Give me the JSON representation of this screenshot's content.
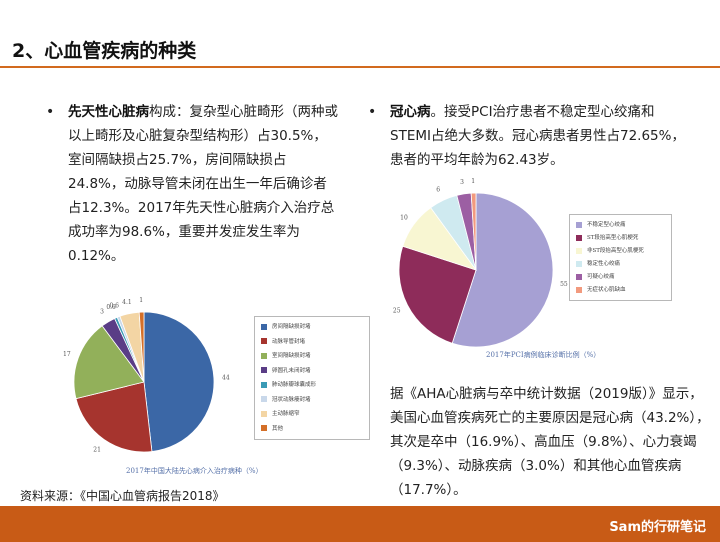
{
  "page": {
    "title": "2、心血管疾病的种类",
    "source": "资料来源：《中国心血管病报告2018》",
    "brand": "Sam的行研笔记",
    "accent_color": "#d26a1e",
    "footer_color": "#c85b16"
  },
  "bullets": {
    "b1": {
      "marker": "•",
      "bold": "先天性心脏病",
      "text": "构成：复杂型心脏畸形（两种或以上畸形及心脏复杂型结构形）占30.5%，室间隔缺损占25.7%，房间隔缺损占24.8%，动脉导管未闭在出生一年后确诊者占12.3%。2017年先天性心脏病介入治疗总成功率为98.6%，重要并发症发生率为0.12%。"
    },
    "b2": {
      "marker": "•",
      "bold": "冠心病",
      "text": "。接受PCI治疗患者不稳定型心绞痛和STEMI占绝大多数。冠心病患者男性占72.65%，患者的平均年龄为62.43岁。"
    },
    "b3": {
      "marker": "•",
      "text": "据《AHA心脏病与卒中统计数据（2019版）》显示，美国心血管疾病死亡的主要原因是冠心病（43.2%），其次是卒中（16.9%）、高血压（9.8%）、心力衰竭（9.3%）、动脉疾病（3.0%）和其他心血管疾病（17.7%）。"
    }
  },
  "chart_data": [
    {
      "type": "pie",
      "title": "2017年中国大陆先心病介入治疗病种（%）",
      "categories": [
        "房间隔缺损封堵",
        "动脉导管封堵",
        "室间隔缺损封堵",
        "卵圆孔未闭封堵",
        "肺动脉瓣球囊成形",
        "冠状动脉瘘封堵",
        "主动脉缩窄",
        "其他"
      ],
      "values": [
        44,
        21,
        17,
        3,
        0.6,
        0.6,
        4.1,
        1
      ],
      "data_labels": [
        "44",
        "21",
        "17",
        "3",
        "0.6",
        "0.6",
        "4.1",
        "1"
      ],
      "colors": [
        "#3b67a6",
        "#a6342e",
        "#92b05a",
        "#5a3d86",
        "#3a9ab5",
        "#c9d8ea",
        "#f3d5a4",
        "#d46f28"
      ],
      "legend": "right"
    },
    {
      "type": "pie",
      "title": "2017年PCI病例临床诊断比例（%）",
      "categories": [
        "不稳定型心绞痛",
        "ST段抬高型心肌梗死",
        "非ST段抬高型心肌梗死",
        "稳定性心绞痛",
        "可疑心绞痛",
        "无症状心肌缺血"
      ],
      "values": [
        55,
        25,
        10,
        6,
        3,
        1
      ],
      "data_labels": [
        "55",
        "25",
        "10",
        "6",
        "3",
        "1"
      ],
      "colors": [
        "#a6a0d3",
        "#8e2c5a",
        "#f8f6d2",
        "#cfeaf0",
        "#9c5fa3",
        "#f29a7e"
      ],
      "legend": "right"
    }
  ]
}
